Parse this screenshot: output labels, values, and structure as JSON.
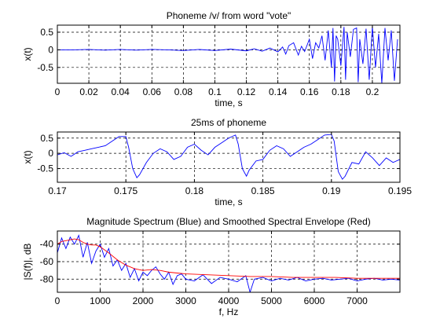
{
  "chart_data": [
    {
      "type": "line",
      "title": "Phoneme /v/ from word \"vote\"",
      "xlabel": "time, s",
      "ylabel": "x(t)",
      "xlim": [
        0,
        0.2175
      ],
      "ylim": [
        -0.95,
        0.7
      ],
      "xticks": [
        0,
        0.02,
        0.04,
        0.06,
        0.08,
        0.1,
        0.12,
        0.14,
        0.16,
        0.18,
        0.2
      ],
      "xtick_labels": [
        "0",
        "0.02",
        "0.04",
        "0.06",
        "0.08",
        "0.1",
        "0.12",
        "0.14",
        "0.16",
        "0.18",
        "0.2"
      ],
      "yticks": [
        0.5,
        0,
        -0.5
      ],
      "ytick_labels": [
        "0.5",
        "0",
        "-0.5"
      ],
      "grid": true,
      "series": [
        {
          "color": "#0000ff",
          "x": [
            0,
            0.01,
            0.02,
            0.03,
            0.04,
            0.05,
            0.06,
            0.07,
            0.08,
            0.09,
            0.1,
            0.11,
            0.12,
            0.125,
            0.13,
            0.135,
            0.14,
            0.143,
            0.145,
            0.147,
            0.15,
            0.153,
            0.155,
            0.157,
            0.16,
            0.162,
            0.164,
            0.166,
            0.168,
            0.17,
            0.172,
            0.174,
            0.175,
            0.176,
            0.177,
            0.178,
            0.18,
            0.182,
            0.183,
            0.184,
            0.186,
            0.188,
            0.19,
            0.191,
            0.192,
            0.194,
            0.196,
            0.198,
            0.2,
            0.202,
            0.204,
            0.206,
            0.208,
            0.21,
            0.212,
            0.214,
            0.216
          ],
          "y": [
            0,
            0,
            0.01,
            -0.01,
            0.01,
            -0.01,
            0.01,
            0,
            -0.02,
            0.01,
            -0.02,
            0.02,
            -0.03,
            0.03,
            -0.04,
            0.05,
            -0.06,
            0.08,
            -0.12,
            0.12,
            0.2,
            -0.15,
            0.1,
            -0.05,
            0.3,
            -0.25,
            0.2,
            0.05,
            0.4,
            -0.3,
            0.55,
            -0.5,
            0.62,
            -0.9,
            0.4,
            0.3,
            -0.45,
            0.65,
            -0.85,
            0.5,
            -0.2,
            0.58,
            0.62,
            -0.92,
            0.3,
            -0.4,
            0.6,
            -0.85,
            0.66,
            -0.5,
            0.45,
            -0.95,
            0.62,
            -0.3,
            0.55,
            -0.88,
            0.3
          ]
        }
      ]
    },
    {
      "type": "line",
      "title": "25ms of phoneme",
      "xlabel": "time, s",
      "ylabel": "x(t)",
      "xlim": [
        0.17,
        0.195
      ],
      "ylim": [
        -0.95,
        0.7
      ],
      "xticks": [
        0.17,
        0.175,
        0.18,
        0.185,
        0.19,
        0.195
      ],
      "xtick_labels": [
        "0.17",
        "0.175",
        "0.18",
        "0.185",
        "0.19",
        "0.195"
      ],
      "yticks": [
        0.5,
        0,
        -0.5
      ],
      "ytick_labels": [
        "0.5",
        "0",
        "-0.5"
      ],
      "grid": true,
      "series": [
        {
          "color": "#0000ff",
          "x": [
            0.17,
            0.1705,
            0.171,
            0.1715,
            0.172,
            0.1725,
            0.173,
            0.1735,
            0.174,
            0.1745,
            0.175,
            0.1752,
            0.1755,
            0.1758,
            0.176,
            0.1765,
            0.177,
            0.1775,
            0.178,
            0.1785,
            0.179,
            0.1795,
            0.18,
            0.1805,
            0.181,
            0.1815,
            0.182,
            0.1825,
            0.183,
            0.1832,
            0.1835,
            0.1838,
            0.184,
            0.1845,
            0.185,
            0.1855,
            0.186,
            0.1865,
            0.187,
            0.1875,
            0.188,
            0.1885,
            0.189,
            0.1895,
            0.19,
            0.1902,
            0.1905,
            0.1908,
            0.191,
            0.1915,
            0.192,
            0.1925,
            0.193,
            0.1935,
            0.194,
            0.1945,
            0.195
          ],
          "y": [
            -0.05,
            0.02,
            -0.1,
            0.05,
            0.1,
            0.15,
            0.2,
            0.25,
            0.4,
            0.55,
            0.55,
            0.2,
            -0.5,
            -0.8,
            -0.7,
            -0.3,
            0.0,
            0.15,
            0.05,
            -0.2,
            -0.1,
            0.2,
            0.3,
            0.1,
            -0.05,
            0.2,
            0.35,
            0.5,
            0.6,
            0.3,
            -0.5,
            -0.75,
            -0.55,
            -0.25,
            -0.2,
            0.1,
            0.25,
            0.15,
            -0.1,
            0.05,
            0.2,
            0.3,
            0.45,
            0.6,
            0.62,
            0.4,
            -0.6,
            -0.85,
            -0.75,
            -0.3,
            -0.35,
            0.05,
            -0.15,
            -0.4,
            -0.15,
            -0.3,
            -0.2
          ]
        }
      ]
    },
    {
      "type": "line",
      "title": "Magnitude Spectrum (Blue) and Smoothed Spectral Envelope (Red)",
      "xlabel": "f, Hz",
      "ylabel": "|S(f)|, dB",
      "xlim": [
        0,
        8000
      ],
      "ylim": [
        -95,
        -25
      ],
      "xticks": [
        0,
        1000,
        2000,
        3000,
        4000,
        5000,
        6000,
        7000
      ],
      "xtick_labels": [
        "0",
        "1000",
        "2000",
        "3000",
        "4000",
        "5000",
        "6000",
        "7000"
      ],
      "yticks": [
        -40,
        -60,
        -80
      ],
      "ytick_labels": [
        "-40",
        "-60",
        "-80"
      ],
      "grid": true,
      "series": [
        {
          "color": "#0000ff",
          "x": [
            0,
            100,
            200,
            300,
            400,
            500,
            600,
            700,
            800,
            900,
            1000,
            1100,
            1200,
            1300,
            1400,
            1500,
            1600,
            1700,
            1800,
            1900,
            2000,
            2100,
            2200,
            2300,
            2400,
            2500,
            2600,
            2700,
            2800,
            2900,
            3000,
            3200,
            3400,
            3600,
            3800,
            4000,
            4200,
            4400,
            4500,
            4600,
            4800,
            5000,
            5200,
            5400,
            5600,
            5800,
            6000,
            6200,
            6400,
            6600,
            6800,
            7000,
            7200,
            7400,
            7600,
            7800,
            8000
          ],
          "y": [
            -50,
            -33,
            -45,
            -32,
            -40,
            -30,
            -55,
            -38,
            -62,
            -48,
            -40,
            -55,
            -45,
            -65,
            -58,
            -70,
            -62,
            -78,
            -68,
            -82,
            -72,
            -76,
            -70,
            -66,
            -74,
            -80,
            -72,
            -86,
            -76,
            -74,
            -80,
            -82,
            -75,
            -85,
            -78,
            -80,
            -83,
            -76,
            -95,
            -80,
            -78,
            -82,
            -79,
            -81,
            -78,
            -82,
            -80,
            -79,
            -81,
            -80,
            -79,
            -82,
            -80,
            -79,
            -81,
            -80,
            -81
          ]
        },
        {
          "color": "#ff0000",
          "x": [
            0,
            100,
            200,
            300,
            400,
            500,
            600,
            700,
            800,
            900,
            1000,
            1200,
            1400,
            1600,
            1800,
            2000,
            2200,
            2400,
            2600,
            2800,
            3000,
            3500,
            4000,
            4500,
            5000,
            5500,
            6000,
            6500,
            7000,
            7500,
            8000
          ],
          "y": [
            -40,
            -37,
            -36,
            -35,
            -34,
            -35,
            -38,
            -40,
            -41,
            -41,
            -43,
            -50,
            -58,
            -64,
            -68,
            -70,
            -69,
            -70,
            -72,
            -73,
            -74,
            -75,
            -76,
            -77,
            -77,
            -78,
            -78,
            -78,
            -79,
            -79,
            -79
          ]
        }
      ]
    }
  ]
}
